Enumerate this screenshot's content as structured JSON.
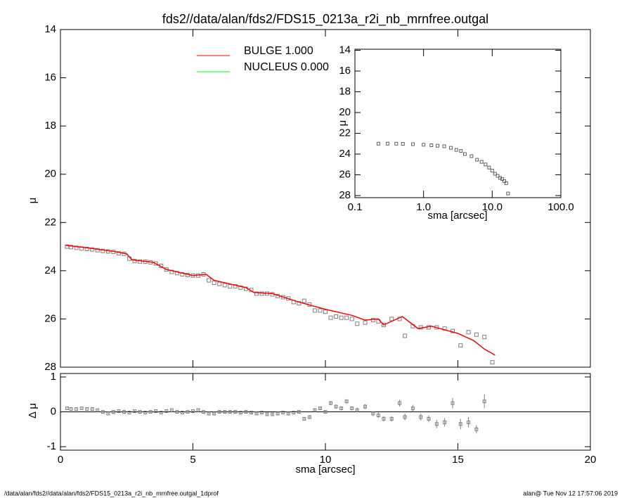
{
  "chart_data": [
    {
      "type": "line",
      "title": "fds2//data/alan/fds2/FDS15_0213a_r2i_nb_mrnfree.outgal",
      "ylabel": "μ",
      "xlim": [
        0,
        20
      ],
      "ylim": [
        14,
        28
      ],
      "y_reversed": true,
      "yticks": [
        14,
        16,
        18,
        20,
        22,
        24,
        26,
        28
      ],
      "legend": "upper center",
      "points": {
        "color": "#808080",
        "x": [
          0.25,
          0.4,
          0.6,
          0.8,
          1.0,
          1.2,
          1.4,
          1.6,
          1.8,
          2.0,
          2.2,
          2.4,
          2.6,
          2.8,
          3.0,
          3.2,
          3.4,
          3.6,
          3.8,
          4.0,
          4.2,
          4.4,
          4.6,
          4.8,
          5.0,
          5.2,
          5.4,
          5.6,
          5.8,
          6.0,
          6.2,
          6.4,
          6.6,
          6.8,
          7.0,
          7.2,
          7.4,
          7.6,
          7.8,
          8.0,
          8.2,
          8.4,
          8.6,
          8.8,
          9.0,
          9.2,
          9.4,
          9.6,
          9.8,
          10.0,
          10.2,
          10.4,
          10.6,
          10.8,
          11.0,
          11.2,
          11.5,
          11.8,
          12.0,
          12.2,
          12.5,
          12.8,
          13.0,
          13.3,
          13.6,
          13.9,
          14.2,
          14.5,
          14.8,
          15.1,
          15.4,
          15.7,
          16.0,
          16.3
        ],
        "values": [
          23.0,
          23.02,
          23.05,
          23.08,
          23.1,
          23.12,
          23.15,
          23.18,
          23.2,
          23.22,
          23.28,
          23.3,
          23.5,
          23.6,
          23.62,
          23.63,
          23.65,
          23.7,
          23.8,
          23.95,
          24.05,
          24.1,
          24.15,
          24.18,
          24.2,
          24.2,
          24.15,
          24.4,
          24.5,
          24.55,
          24.6,
          24.65,
          24.65,
          24.7,
          24.75,
          24.8,
          24.95,
          24.95,
          24.95,
          24.98,
          25.05,
          25.1,
          25.15,
          25.3,
          25.35,
          25.25,
          25.4,
          25.65,
          25.65,
          25.7,
          25.95,
          25.9,
          25.95,
          25.95,
          26.0,
          26.2,
          26.15,
          26.05,
          26.1,
          26.25,
          26.0,
          26.0,
          26.7,
          26.3,
          26.35,
          26.35,
          26.35,
          26.4,
          26.5,
          27.1,
          26.55,
          26.65,
          26.75,
          27.8
        ]
      },
      "series": [
        {
          "name": "BULGE  1.000",
          "color": "#ff0000",
          "x": [
            0.2,
            1.0,
            2.0,
            2.5,
            2.7,
            3.5,
            4.0,
            5.0,
            5.5,
            5.8,
            7.0,
            7.3,
            8.0,
            9.0,
            10.0,
            11.0,
            11.5,
            12.0,
            12.2,
            12.9,
            13.5,
            14.0,
            15.0,
            15.6,
            16.0,
            16.4
          ],
          "values": [
            22.95,
            23.05,
            23.2,
            23.3,
            23.55,
            23.65,
            23.95,
            24.2,
            24.15,
            24.4,
            24.7,
            24.9,
            24.95,
            25.3,
            25.6,
            25.85,
            26.05,
            26.0,
            26.25,
            25.9,
            26.4,
            26.3,
            26.6,
            26.9,
            27.25,
            27.5
          ]
        },
        {
          "name": "NUCLEUS  0.000",
          "color": "#00ff00",
          "x": [],
          "values": []
        }
      ]
    },
    {
      "type": "scatter",
      "ylabel": "Δ μ",
      "xlabel": "sma [arcsec]",
      "xlim": [
        0,
        20
      ],
      "xticks": [
        0,
        5,
        10,
        15,
        20
      ],
      "ylim": [
        -1.1,
        1.1
      ],
      "yticks": [
        1,
        0,
        -1
      ],
      "color": "#808080",
      "x": [
        0.25,
        0.4,
        0.6,
        0.8,
        1.0,
        1.2,
        1.4,
        1.6,
        1.8,
        2.0,
        2.2,
        2.4,
        2.6,
        2.8,
        3.0,
        3.2,
        3.4,
        3.6,
        3.8,
        4.0,
        4.2,
        4.4,
        4.6,
        4.8,
        5.0,
        5.2,
        5.4,
        5.6,
        5.8,
        6.0,
        6.2,
        6.4,
        6.6,
        6.8,
        7.0,
        7.2,
        7.4,
        7.6,
        7.8,
        8.0,
        8.2,
        8.4,
        8.6,
        8.8,
        9.0,
        9.2,
        9.4,
        9.6,
        9.8,
        10.0,
        10.2,
        10.4,
        10.6,
        10.8,
        11.0,
        11.2,
        11.5,
        11.8,
        12.0,
        12.2,
        12.5,
        12.8,
        13.0,
        13.3,
        13.6,
        13.9,
        14.2,
        14.5,
        14.8,
        15.1,
        15.4,
        15.7,
        16.0
      ],
      "values": [
        0.1,
        0.08,
        0.08,
        0.1,
        0.08,
        0.08,
        0.05,
        0.0,
        -0.05,
        0.0,
        0.02,
        0.0,
        -0.02,
        0.02,
        0.0,
        -0.02,
        0.0,
        0.02,
        -0.02,
        0.02,
        0.05,
        0.0,
        -0.02,
        0.0,
        0.02,
        0.05,
        0.0,
        -0.05,
        -0.05,
        0.0,
        0.0,
        0.0,
        0.0,
        -0.02,
        0.0,
        -0.02,
        -0.05,
        -0.02,
        -0.07,
        -0.07,
        -0.05,
        -0.02,
        -0.05,
        -0.02,
        0.0,
        -0.2,
        -0.15,
        0.05,
        0.1,
        0.0,
        0.25,
        0.15,
        0.1,
        0.3,
        0.1,
        0.05,
        0.15,
        -0.05,
        -0.1,
        -0.2,
        -0.2,
        0.25,
        -0.15,
        0.1,
        -0.15,
        -0.2,
        -0.35,
        -0.3,
        0.25,
        -0.35,
        -0.3,
        -0.5,
        0.3
      ],
      "errors": [
        0.02,
        0.02,
        0.02,
        0.02,
        0.02,
        0.02,
        0.02,
        0.02,
        0.02,
        0.02,
        0.02,
        0.02,
        0.02,
        0.02,
        0.02,
        0.02,
        0.02,
        0.02,
        0.02,
        0.02,
        0.02,
        0.02,
        0.02,
        0.02,
        0.02,
        0.02,
        0.02,
        0.03,
        0.03,
        0.03,
        0.03,
        0.03,
        0.03,
        0.03,
        0.03,
        0.03,
        0.03,
        0.03,
        0.03,
        0.04,
        0.04,
        0.04,
        0.04,
        0.04,
        0.05,
        0.05,
        0.05,
        0.05,
        0.05,
        0.05,
        0.06,
        0.06,
        0.06,
        0.06,
        0.06,
        0.07,
        0.07,
        0.07,
        0.08,
        0.08,
        0.08,
        0.1,
        0.1,
        0.1,
        0.1,
        0.1,
        0.12,
        0.12,
        0.15,
        0.15,
        0.15,
        0.12,
        0.2
      ]
    },
    {
      "type": "scatter",
      "xlabel": "sma [arcsec]",
      "ylabel": "μ",
      "x_log": true,
      "xlim": [
        0.1,
        100
      ],
      "xticks": [
        {
          "value": 0.1,
          "label": "0.1"
        },
        {
          "value": 1,
          "label": "1.0"
        },
        {
          "value": 10,
          "label": "10.0"
        },
        {
          "value": 100,
          "label": "100.0"
        }
      ],
      "ylim": [
        13.9,
        28.2
      ],
      "y_reversed": true,
      "yticks": [
        14,
        16,
        18,
        20,
        22,
        24,
        26,
        28
      ],
      "color": "#606060",
      "x": [
        0.22,
        0.3,
        0.4,
        0.5,
        0.7,
        1.0,
        1.3,
        1.6,
        2.0,
        2.5,
        3.0,
        3.5,
        4.0,
        5.0,
        6.0,
        7.0,
        8.0,
        9.0,
        10.0,
        11.0,
        12.0,
        13.0,
        14.0,
        15.0,
        16.0,
        17.0
      ],
      "values": [
        23.0,
        23.0,
        23.0,
        23.02,
        23.05,
        23.1,
        23.15,
        23.2,
        23.25,
        23.4,
        23.6,
        23.7,
        24.0,
        24.2,
        24.55,
        24.75,
        25.0,
        25.3,
        25.6,
        25.9,
        26.1,
        26.3,
        26.4,
        26.6,
        26.8,
        27.8
      ]
    }
  ],
  "footer": {
    "left": "/data/alan/fds2//data/alan/fds2/FDS15_0213a_r2i_nb_mrnfree.outgal_1dprof",
    "right": "alan@  Tue Nov 12 17:57:06 2019"
  }
}
